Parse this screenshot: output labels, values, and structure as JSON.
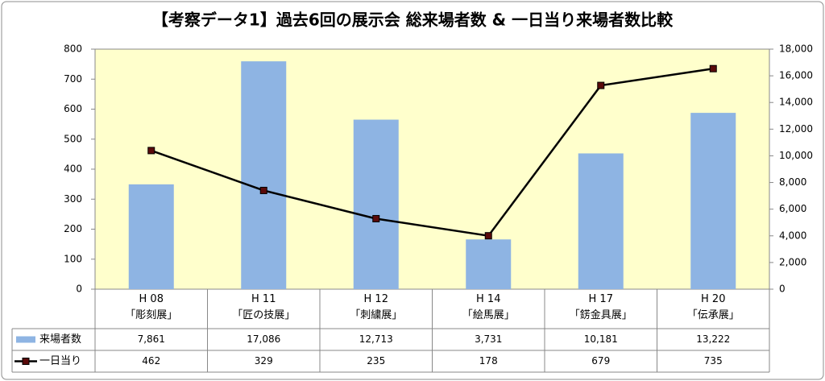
{
  "chart_data": {
    "type": "bar_line",
    "title": "【考察データ1】過去6回の展示会 総来場者数 & 一日当り来場者数比較",
    "categories": [
      "H 08\n「彫刻展」",
      "H 11\n「匠の技展」",
      "H 12\n「刺繍展」",
      "H 14\n「絵馬展」",
      "H 17\n「錺金具展」",
      "H 20\n「伝承展」"
    ],
    "series": [
      {
        "name": "来場者数",
        "type": "bar",
        "axis": "y2",
        "color": "#8eb4e3",
        "values": [
          7861,
          17086,
          12713,
          3731,
          10181,
          13222
        ],
        "value_labels": [
          "7,861",
          "17,086",
          "12,713",
          "3,731",
          "10,181",
          "13,222"
        ]
      },
      {
        "name": "一日当り",
        "type": "line",
        "color": "#000000",
        "marker_color": "#5a0a0a",
        "values": [
          462,
          329,
          235,
          178,
          679,
          735
        ]
      }
    ],
    "ylim": [
      0,
      800
    ],
    "yticks": [
      0,
      100,
      200,
      300,
      400,
      500,
      600,
      700,
      800
    ],
    "y2lim": [
      0,
      18000
    ],
    "y2ticks": [
      0,
      {
        "value": 2000,
        "label": "2,000"
      },
      {
        "value": 4000,
        "label": "4,000"
      },
      {
        "value": 6000,
        "label": "6,000"
      },
      {
        "value": 8000,
        "label": "8,000"
      },
      {
        "value": 10000,
        "label": "10,000"
      },
      {
        "value": 12000,
        "label": "12,000"
      },
      {
        "value": 14000,
        "label": "14,000"
      },
      {
        "value": 16000,
        "label": "16,000"
      },
      {
        "value": 18000,
        "label": "18,000"
      }
    ],
    "grid": false,
    "plot_background": "#ffffcc"
  }
}
